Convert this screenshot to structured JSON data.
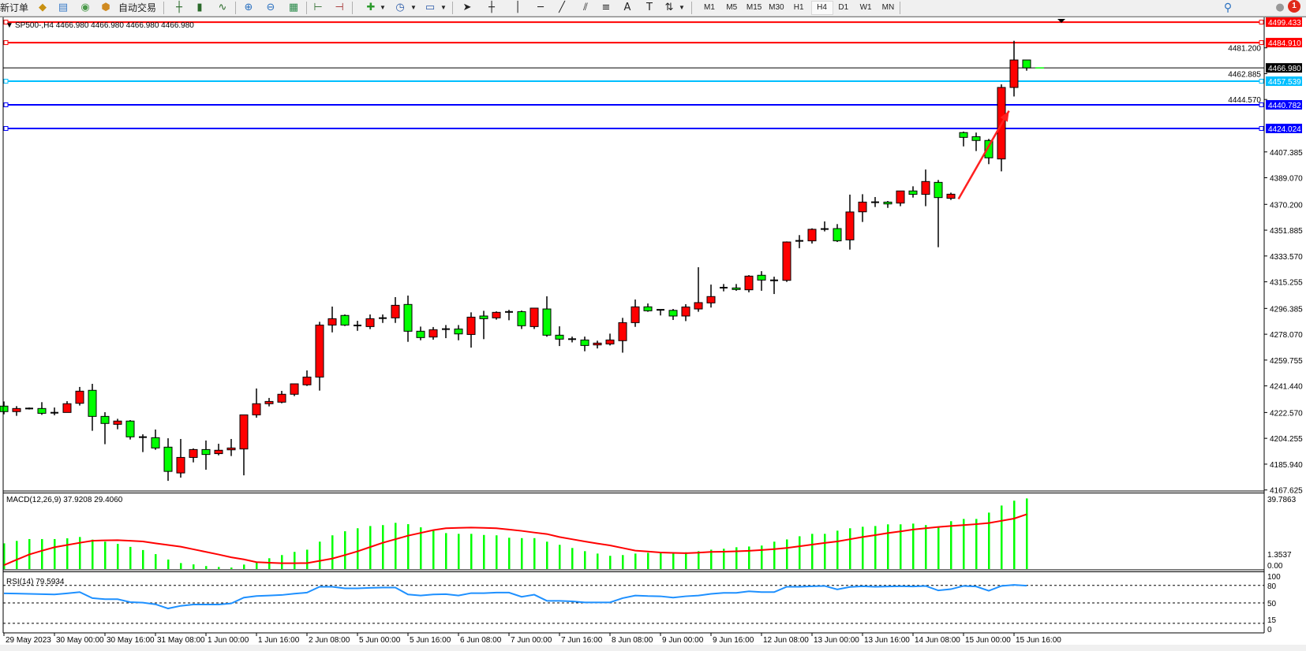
{
  "toolbar": {
    "new_order": "新订单",
    "auto_trading": "自动交易",
    "icons": [
      "market-watch-icon",
      "data-window-icon",
      "signals-icon",
      "auto-trading-icon",
      "bar-chart-icon",
      "candlestick-icon",
      "line-chart-icon",
      "zoom-in-icon",
      "zoom-out-icon",
      "tile-windows-icon",
      "auto-scroll-icon",
      "chart-shift-icon",
      "indicators-icon",
      "periods-icon",
      "templates-icon",
      "cursor-icon",
      "crosshair-icon",
      "vertical-line-icon",
      "horizontal-line-icon",
      "trendline-icon",
      "equidistant-channel-icon",
      "fibonacci-icon",
      "text-icon",
      "text-label-icon",
      "arrows-icon"
    ],
    "timeframes": [
      "M1",
      "M5",
      "M15",
      "M30",
      "H1",
      "H4",
      "D1",
      "W1",
      "MN"
    ],
    "active_timeframe": "H4",
    "notification_count": "1"
  },
  "chart": {
    "header": "SP500-,H4  4466.980 4466.980 4466.980 4466.980",
    "colors": {
      "bull": "#ff0000",
      "bear": "#00ff00",
      "outline": "#000000"
    }
  },
  "chart_data": [
    {
      "type": "candlestick",
      "symbol": "SP500-",
      "timeframe": "H4",
      "ylim": [
        4167.625,
        4499.433
      ],
      "price_ticks": [
        "4481.200",
        "4462.885",
        "4444.570",
        "4407.385",
        "4389.070",
        "4370.200",
        "4351.885",
        "4333.570",
        "4315.255",
        "4296.385",
        "4278.070",
        "4259.755",
        "4241.440",
        "4222.570",
        "4204.255",
        "4185.940",
        "4167.625"
      ],
      "time_labels": [
        "29 May 2023",
        "30 May 00:00",
        "30 May 16:00",
        "31 May 08:00",
        "1 Jun 00:00",
        "1 Jun 16:00",
        "2 Jun 08:00",
        "5 Jun 00:00",
        "5 Jun 16:00",
        "6 Jun 08:00",
        "7 Jun 00:00",
        "7 Jun 16:00",
        "8 Jun 08:00",
        "9 Jun 00:00",
        "9 Jun 16:00",
        "12 Jun 08:00",
        "13 Jun 00:00",
        "13 Jun 16:00",
        "14 Jun 08:00",
        "15 Jun 00:00",
        "15 Jun 16:00"
      ],
      "ohlc": [
        [
          4227.1,
          4230.4,
          4221.3,
          4223.2
        ],
        [
          4223.2,
          4227.1,
          4220.2,
          4225.4
        ],
        [
          4225.4,
          4226.1,
          4224.7,
          4225.4
        ],
        [
          4225.4,
          4229.9,
          4220.9,
          4222.0
        ],
        [
          4222.4,
          4226.1,
          4220.6,
          4222.4
        ],
        [
          4222.6,
          4230.6,
          4222.6,
          4228.8
        ],
        [
          4229.1,
          4240.7,
          4227.5,
          4237.7
        ],
        [
          4238.3,
          4242.9,
          4209.6,
          4219.8
        ],
        [
          4219.8,
          4222.8,
          4200.1,
          4214.8
        ],
        [
          4214.2,
          4218.1,
          4210.7,
          4216.5
        ],
        [
          4216.5,
          4217.2,
          4203.4,
          4205.3
        ],
        [
          4205.1,
          4207.1,
          4194.5,
          4205.1
        ],
        [
          4204.7,
          4210.5,
          4196.1,
          4197.4
        ],
        [
          4198.0,
          4204.3,
          4174.1,
          4180.8
        ],
        [
          4179.7,
          4203.8,
          4176.4,
          4190.7
        ],
        [
          4190.7,
          4197.1,
          4187.2,
          4196.3
        ],
        [
          4196.3,
          4202.7,
          4182.0,
          4192.8
        ],
        [
          4193.4,
          4200.4,
          4192.2,
          4195.8
        ],
        [
          4196.1,
          4203.8,
          4191.7,
          4197.4
        ],
        [
          4196.7,
          4220.9,
          4178.0,
          4220.9
        ],
        [
          4220.9,
          4239.6,
          4218.9,
          4228.8
        ],
        [
          4228.8,
          4232.9,
          4226.9,
          4230.4
        ],
        [
          4229.9,
          4237.9,
          4229.1,
          4235.5
        ],
        [
          4235.5,
          4242.9,
          4234.2,
          4242.9
        ],
        [
          4242.2,
          4252.4,
          4241.4,
          4247.7
        ],
        [
          4247.7,
          4286.9,
          4238.1,
          4284.6
        ],
        [
          4284.6,
          4297.7,
          4279.4,
          4289.1
        ],
        [
          4291.4,
          4292.1,
          4283.9,
          4284.6
        ],
        [
          4284.3,
          4287.6,
          4280.5,
          4284.3
        ],
        [
          4283.5,
          4292.1,
          4281.7,
          4289.1
        ],
        [
          4289.5,
          4292.1,
          4286.1,
          4289.5
        ],
        [
          4289.7,
          4304.4,
          4286.1,
          4298.6
        ],
        [
          4299.2,
          4305.5,
          4272.7,
          4280.2
        ],
        [
          4280.2,
          4283.5,
          4273.8,
          4275.7
        ],
        [
          4276.1,
          4283.2,
          4274.2,
          4281.3
        ],
        [
          4281.7,
          4284.6,
          4275.3,
          4281.7
        ],
        [
          4281.8,
          4284.6,
          4273.8,
          4278.3
        ],
        [
          4277.9,
          4293.6,
          4268.6,
          4290.2
        ],
        [
          4291.0,
          4294.7,
          4274.6,
          4289.1
        ],
        [
          4289.7,
          4294.3,
          4288.4,
          4293.6
        ],
        [
          4293.9,
          4295.4,
          4288.0,
          4293.9
        ],
        [
          4294.1,
          4294.9,
          4281.8,
          4284.1
        ],
        [
          4283.5,
          4296.6,
          4281.8,
          4296.6
        ],
        [
          4296.0,
          4305.0,
          4276.3,
          4277.4
        ],
        [
          4277.4,
          4283.7,
          4269.7,
          4274.6
        ],
        [
          4274.6,
          4276.4,
          4272.3,
          4274.6
        ],
        [
          4274.0,
          4276.4,
          4266.0,
          4270.1
        ],
        [
          4270.5,
          4273.5,
          4268.0,
          4271.8
        ],
        [
          4271.2,
          4278.5,
          4270.1,
          4274.0
        ],
        [
          4273.5,
          4289.7,
          4265.0,
          4286.3
        ],
        [
          4286.3,
          4302.7,
          4283.3,
          4297.5
        ],
        [
          4297.5,
          4299.9,
          4294.0,
          4294.7
        ],
        [
          4295.4,
          4295.4,
          4291.4,
          4295.4
        ],
        [
          4295.0,
          4296.0,
          4288.2,
          4291.0
        ],
        [
          4291.0,
          4299.4,
          4287.4,
          4297.4
        ],
        [
          4296.0,
          4325.6,
          4294.0,
          4300.5
        ],
        [
          4300.3,
          4313.3,
          4297.0,
          4304.8
        ],
        [
          4311.1,
          4313.7,
          4308.5,
          4311.1
        ],
        [
          4310.9,
          4313.7,
          4308.9,
          4309.8
        ],
        [
          4309.6,
          4320.0,
          4307.8,
          4319.3
        ],
        [
          4319.9,
          4322.8,
          4308.9,
          4316.5
        ],
        [
          4316.3,
          4318.9,
          4306.6,
          4316.3
        ],
        [
          4316.3,
          4343.9,
          4315.2,
          4343.5
        ],
        [
          4344.3,
          4348.4,
          4339.1,
          4344.3
        ],
        [
          4344.3,
          4353.2,
          4342.4,
          4352.5
        ],
        [
          4352.7,
          4358.1,
          4351.0,
          4352.7
        ],
        [
          4353.0,
          4356.2,
          4343.5,
          4344.3
        ],
        [
          4345.0,
          4377.1,
          4338.1,
          4364.8
        ],
        [
          4364.9,
          4377.4,
          4357.7,
          4371.8
        ],
        [
          4371.7,
          4375.4,
          4368.3,
          4371.7
        ],
        [
          4371.8,
          4372.6,
          4367.7,
          4370.5
        ],
        [
          4371.1,
          4379.7,
          4368.9,
          4379.7
        ],
        [
          4379.7,
          4383.0,
          4375.0,
          4377.3
        ],
        [
          4377.3,
          4394.9,
          4368.9,
          4386.4
        ],
        [
          4385.8,
          4387.5,
          4339.8,
          4375.0
        ],
        [
          4374.5,
          4378.5,
          4373.3,
          4377.4
        ],
        [
          4421.1,
          4421.8,
          4411.3,
          4417.7
        ],
        [
          4418.2,
          4421.1,
          4408.0,
          4415.5
        ],
        [
          4415.5,
          4416.6,
          4398.7,
          4403.2
        ],
        [
          4402.4,
          4455.3,
          4393.6,
          4453.1
        ],
        [
          4453.1,
          4486.2,
          4446.7,
          4472.6
        ],
        [
          4472.6,
          4472.6,
          4465.0,
          4466.98
        ]
      ],
      "horizontal_lines": [
        {
          "price": 4499.433,
          "label": "4499.433",
          "color": "#ff0000"
        },
        {
          "price": 4484.91,
          "label": "4484.910",
          "color": "#ff0000"
        },
        {
          "price": 4466.98,
          "label": "4466.980",
          "color": "#000000"
        },
        {
          "price": 4457.539,
          "label": "4457.539",
          "color": "#00bfff"
        },
        {
          "price": 4440.782,
          "label": "4440.782",
          "color": "#0000ff"
        },
        {
          "price": 4424.024,
          "label": "4424.024",
          "color": "#0000ff"
        }
      ],
      "annotation_arrow": {
        "color": "#ff2020",
        "from": [
          75.6,
          4374.0
        ],
        "to": [
          79.6,
          4436.5
        ]
      }
    },
    {
      "type": "bar+line",
      "title": "MACD(12,26,9) 37.9208 29.4060",
      "ylim": [
        0,
        39.7863
      ],
      "axis_labels": [
        "39.7863",
        "1.3537",
        "0.00"
      ],
      "histogram": [
        13.8,
        15.1,
        16.1,
        16.1,
        16.1,
        16.5,
        17.2,
        15.8,
        14.7,
        13.5,
        11.9,
        10.2,
        8.0,
        5.1,
        3.2,
        2.5,
        1.6,
        1.1,
        0.8,
        2.4,
        4.0,
        5.8,
        7.5,
        9.2,
        10.4,
        14.7,
        18.1,
        20.3,
        21.9,
        23.1,
        23.6,
        24.8,
        24.1,
        22.4,
        20.7,
        19.3,
        18.9,
        18.9,
        18.3,
        18.1,
        16.8,
        16.6,
        16.6,
        14.7,
        13.0,
        11.3,
        9.6,
        8.3,
        7.1,
        7.5,
        8.3,
        8.7,
        8.7,
        8.3,
        9.0,
        9.6,
        10.4,
        10.9,
        11.7,
        12.1,
        12.6,
        14.7,
        15.9,
        17.6,
        18.9,
        18.9,
        20.6,
        21.9,
        22.7,
        23.1,
        24.0,
        24.0,
        24.4,
        23.6,
        22.7,
        25.7,
        26.9,
        26.9,
        30.3,
        34.1,
        36.7,
        37.9208
      ],
      "signal": [
        2.1,
        5.0,
        7.8,
        9.8,
        11.7,
        12.9,
        14.1,
        15.2,
        15.4,
        15.5,
        15.2,
        14.8,
        13.8,
        12.9,
        12.0,
        10.6,
        9.2,
        7.8,
        6.3,
        5.2,
        3.7,
        3.4,
        3.1,
        3.1,
        3.2,
        4.4,
        5.6,
        7.5,
        9.5,
        11.8,
        14.1,
        16.0,
        17.9,
        19.4,
        20.9,
        21.9,
        22.1,
        22.3,
        22.1,
        21.9,
        21.2,
        20.5,
        19.6,
        18.8,
        17.2,
        16.0,
        14.8,
        13.7,
        12.7,
        11.3,
        9.9,
        9.4,
        8.9,
        8.7,
        8.5,
        8.8,
        9.2,
        9.3,
        9.5,
        9.8,
        10.2,
        10.7,
        11.3,
        12.2,
        13.1,
        14.0,
        14.8,
        16.0,
        17.2,
        18.2,
        19.3,
        20.2,
        21.2,
        21.9,
        22.6,
        23.1,
        23.6,
        24.1,
        24.7,
        25.9,
        27.1,
        29.406
      ],
      "colors": {
        "histogram": "#00ff00",
        "signal": "#ff0000"
      }
    },
    {
      "type": "line",
      "title": "RSI(14) 79.5934",
      "ylim": [
        0,
        100
      ],
      "levels": [
        80,
        50,
        15
      ],
      "axis_labels": [
        "100",
        "80",
        "50",
        "15",
        "0"
      ],
      "values": [
        66.4,
        66.0,
        65.5,
        65.0,
        64.5,
        66.4,
        68.6,
        58.2,
        56.4,
        56.4,
        51.4,
        50.5,
        47.7,
        40.5,
        45.0,
        47.3,
        47.3,
        47.3,
        49.1,
        59.1,
        61.8,
        62.7,
        63.6,
        65.9,
        67.7,
        77.7,
        77.7,
        75.0,
        75.0,
        75.9,
        76.4,
        76.4,
        64.5,
        62.7,
        64.5,
        65.0,
        62.7,
        66.8,
        66.8,
        67.7,
        67.7,
        60.5,
        64.1,
        53.6,
        53.6,
        52.7,
        50.9,
        50.9,
        50.9,
        58.2,
        62.7,
        61.8,
        61.4,
        59.1,
        61.4,
        62.7,
        65.5,
        67.3,
        67.3,
        70.0,
        68.6,
        68.6,
        77.7,
        77.7,
        78.6,
        79.1,
        73.2,
        77.3,
        78.6,
        77.7,
        78.2,
        78.6,
        78.2,
        79.1,
        71.4,
        73.6,
        79.1,
        78.2,
        70.9,
        79.1,
        80.9,
        79.5934
      ],
      "color": "#1e90ff"
    }
  ]
}
